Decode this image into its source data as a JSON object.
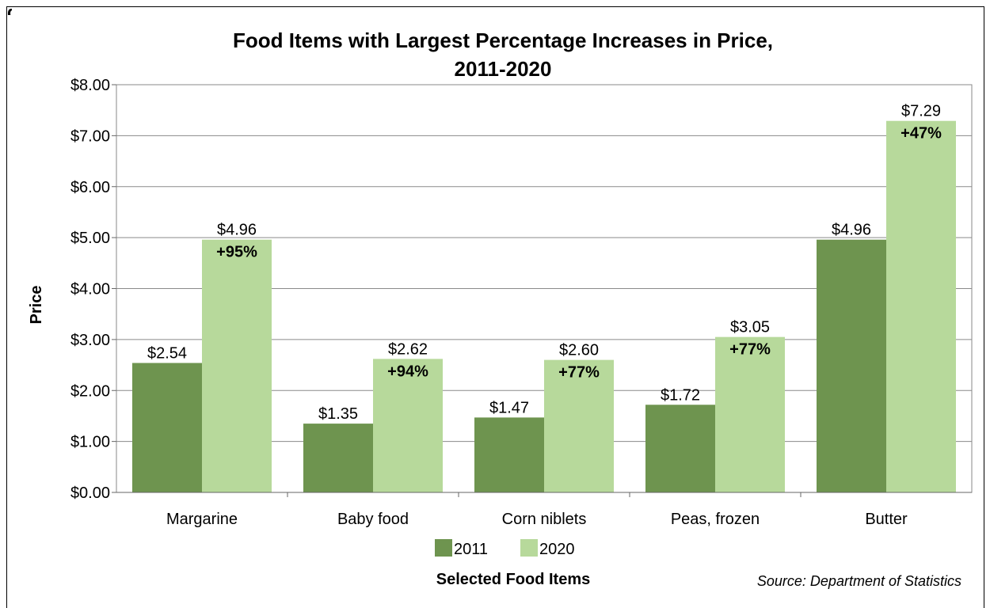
{
  "chart_data": {
    "type": "bar",
    "title": [
      "Food Items with Largest Percentage Increases in Price,",
      "2011-2020"
    ],
    "categories": [
      "Margarine",
      "Baby food",
      "Corn niblets",
      "Peas, frozen",
      "Butter"
    ],
    "series": [
      {
        "name": "2011",
        "color": "#6E944F",
        "values": [
          2.54,
          1.35,
          1.47,
          1.72,
          4.96
        ],
        "labels": [
          "$2.54",
          "$1.35",
          "$1.47",
          "$1.72",
          "$4.96"
        ]
      },
      {
        "name": "2020",
        "color": "#B7D99B",
        "values": [
          4.96,
          2.62,
          2.6,
          3.05,
          7.29
        ],
        "labels": [
          "$4.96",
          "$2.62",
          "$2.60",
          "$3.05",
          "$7.29"
        ],
        "pct_labels": [
          "+95%",
          "+94%",
          "+77%",
          "+77%",
          "+47%"
        ]
      }
    ],
    "ylabel": "Price",
    "xlabel": "Selected Food Items",
    "ylim": [
      0,
      8
    ],
    "yticks": [
      0,
      1,
      2,
      3,
      4,
      5,
      6,
      7,
      8
    ],
    "ytick_labels": [
      "$0.00",
      "$1.00",
      "$2.00",
      "$3.00",
      "$4.00",
      "$5.00",
      "$6.00",
      "$7.00",
      "$8.00"
    ],
    "grid": true,
    "legend_position": "bottom",
    "source_note": "Source: Department of Statistics"
  }
}
